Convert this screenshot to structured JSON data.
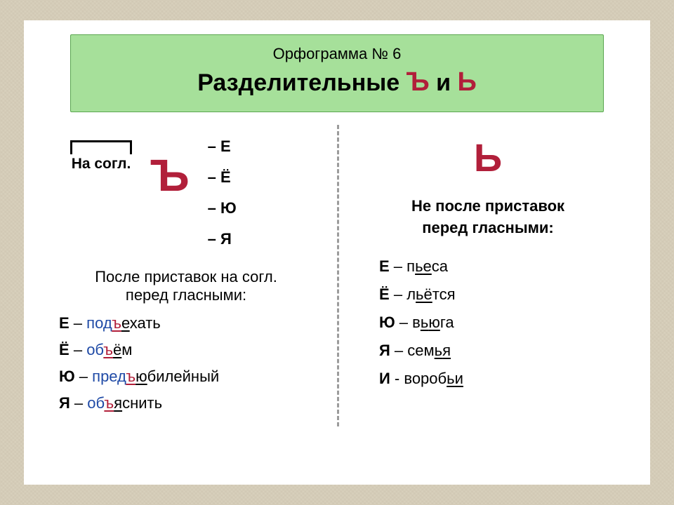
{
  "colors": {
    "page_bg": "#d8d0bc",
    "sheet_bg": "#ffffff",
    "header_bg": "#a6e09a",
    "header_border": "#5aa64f",
    "text": "#000000",
    "red": "#b11f3a",
    "blue": "#1f4aa6",
    "divider": "#9c9c9c"
  },
  "fonts": {
    "family": "Arial",
    "subtitle_pt": 22,
    "title_pt": 34,
    "body_pt": 22,
    "big_letter_pt": 64,
    "right_letter_pt": 56
  },
  "header": {
    "subtitle": "Орфограмма № 6",
    "title_prefix": "Разделительные ",
    "letter1": "Ъ",
    "conj": " и ",
    "letter2": "Ь"
  },
  "left": {
    "prefix_label": "На согл.",
    "letter": "Ъ",
    "vowels": [
      "– Е",
      "– Ё",
      "– Ю",
      "– Я"
    ],
    "rule_line1": "После приставок на согл.",
    "rule_line2": "перед гласными:",
    "examples": [
      {
        "vowel": "Е",
        "dash": " – ",
        "pre": "под",
        "sign": "ъ",
        "mid": "е",
        "post": "хать"
      },
      {
        "vowel": "Ё",
        "dash": " – ",
        "pre": "об",
        "sign": "ъ",
        "mid": "ё",
        "post": "м"
      },
      {
        "vowel": "Ю",
        "dash": " – ",
        "pre": "пред",
        "sign": "ъ",
        "mid": "ю",
        "post": "билейный"
      },
      {
        "vowel": "Я",
        "dash": " – ",
        "pre": "об",
        "sign": "ъ",
        "mid": "я",
        "post": "снить"
      }
    ]
  },
  "right": {
    "letter": "Ь",
    "rule_line1": "Не после приставок",
    "rule_line2": "перед гласными:",
    "examples": [
      {
        "vowel": "Е",
        "dash": " – ",
        "pre": "п",
        "sign": "ь",
        "mid": "е",
        "post": "са"
      },
      {
        "vowel": "Ё",
        "dash": " – ",
        "pre": "л",
        "sign": "ь",
        "mid": "ё",
        "post": "тся"
      },
      {
        "vowel": "Ю",
        "dash": " – ",
        "pre": "в",
        "sign": "ь",
        "mid": "ю",
        "post": "га"
      },
      {
        "vowel": "Я",
        "dash": " – ",
        "pre": "сем",
        "sign": "ь",
        "mid": "я",
        "post": ""
      },
      {
        "vowel": "И",
        "dash": " - ",
        "pre": "вороб",
        "sign": "ь",
        "mid": "и",
        "post": ""
      }
    ]
  }
}
